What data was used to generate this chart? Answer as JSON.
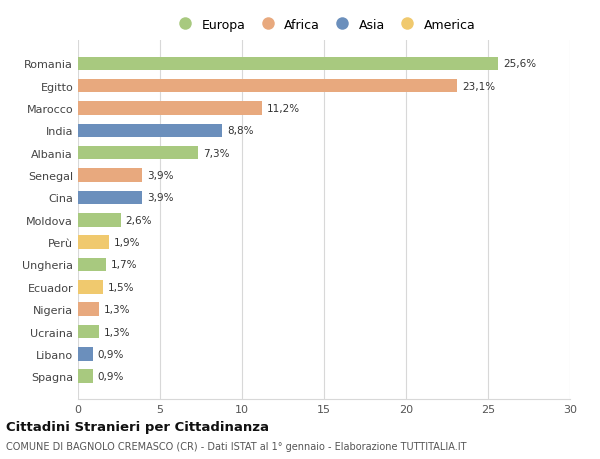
{
  "countries": [
    "Romania",
    "Egitto",
    "Marocco",
    "India",
    "Albania",
    "Senegal",
    "Cina",
    "Moldova",
    "Perù",
    "Ungheria",
    "Ecuador",
    "Nigeria",
    "Ucraina",
    "Libano",
    "Spagna"
  ],
  "values": [
    25.6,
    23.1,
    11.2,
    8.8,
    7.3,
    3.9,
    3.9,
    2.6,
    1.9,
    1.7,
    1.5,
    1.3,
    1.3,
    0.9,
    0.9
  ],
  "labels": [
    "25,6%",
    "23,1%",
    "11,2%",
    "8,8%",
    "7,3%",
    "3,9%",
    "3,9%",
    "2,6%",
    "1,9%",
    "1,7%",
    "1,5%",
    "1,3%",
    "1,3%",
    "0,9%",
    "0,9%"
  ],
  "continents": [
    "Europa",
    "Africa",
    "Africa",
    "Asia",
    "Europa",
    "Africa",
    "Asia",
    "Europa",
    "America",
    "Europa",
    "America",
    "Africa",
    "Europa",
    "Asia",
    "Europa"
  ],
  "colors": {
    "Europa": "#a8c97f",
    "Africa": "#e8a97e",
    "Asia": "#6b8fbc",
    "America": "#f0c96e"
  },
  "xlim": [
    0,
    30
  ],
  "xticks": [
    0,
    5,
    10,
    15,
    20,
    25,
    30
  ],
  "title": "Cittadini Stranieri per Cittadinanza",
  "subtitle": "COMUNE DI BAGNOLO CREMASCO (CR) - Dati ISTAT al 1° gennaio - Elaborazione TUTTITALIA.IT",
  "background_color": "#ffffff",
  "grid_color": "#d8d8d8",
  "bar_height": 0.6,
  "legend_order": [
    "Europa",
    "Africa",
    "Asia",
    "America"
  ]
}
